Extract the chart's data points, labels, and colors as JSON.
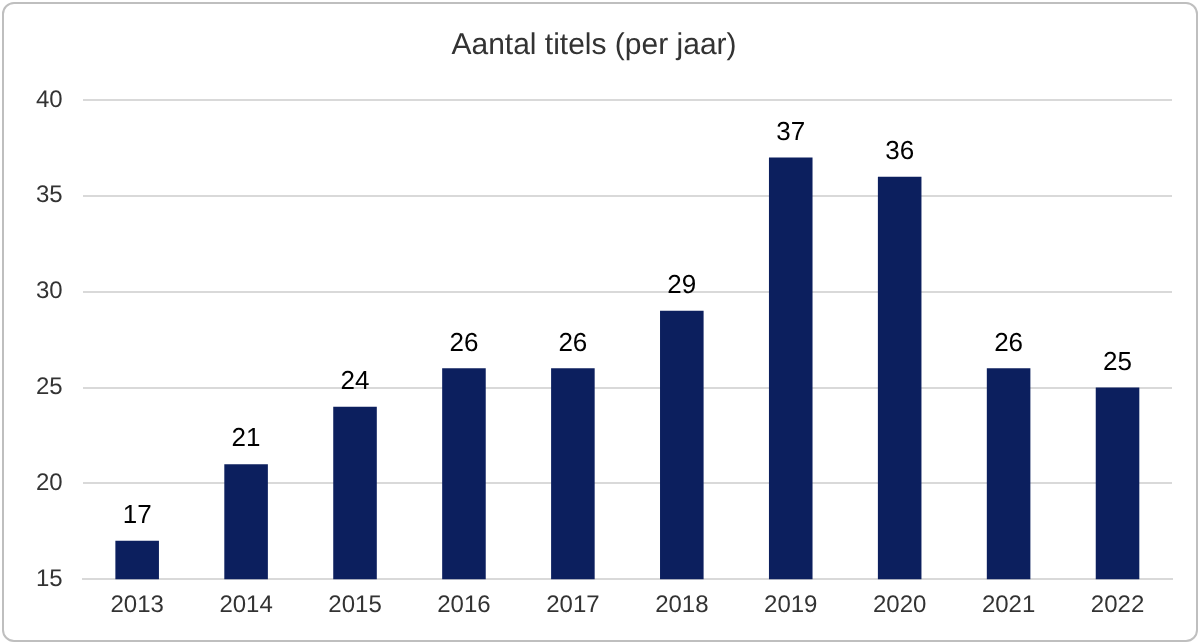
{
  "chart_data": {
    "type": "bar",
    "title": "Aantal titels (per jaar)",
    "categories": [
      "2013",
      "2014",
      "2015",
      "2016",
      "2017",
      "2018",
      "2019",
      "2020",
      "2021",
      "2022"
    ],
    "values": [
      17,
      21,
      24,
      26,
      26,
      29,
      37,
      36,
      26,
      25
    ],
    "color": "#0c1f5e",
    "ylim": [
      15,
      40
    ],
    "yticks": [
      15,
      20,
      25,
      30,
      35,
      40
    ],
    "grid": "y",
    "data_labels": true
  }
}
